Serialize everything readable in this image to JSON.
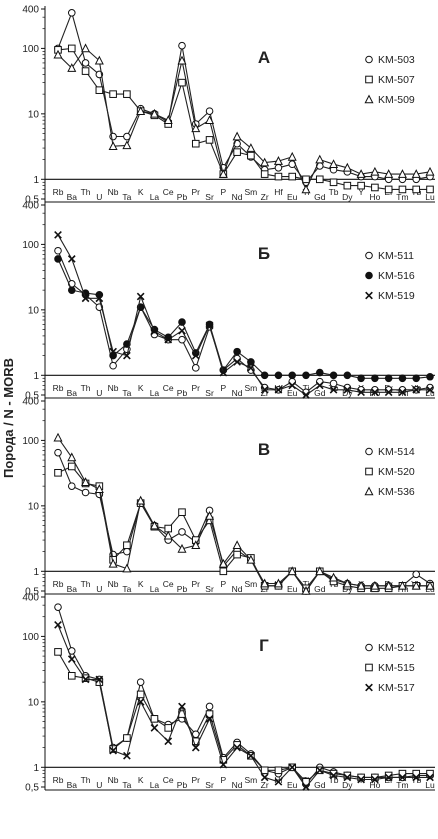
{
  "figure": {
    "ylabel": "Порода / N - MORB"
  },
  "chart_data": [
    {
      "type": "line",
      "title": "А",
      "yscale": "log",
      "ylim": [
        0.5,
        400
      ],
      "ytick_labels": [
        "0,5",
        "1",
        "10",
        "100",
        "400"
      ],
      "reference_line": 1,
      "categories": [
        "Rb",
        "Ba",
        "Th",
        "U",
        "Nb",
        "Ta",
        "K",
        "La",
        "Ce",
        "Pb",
        "Pr",
        "Sr",
        "P",
        "Nd",
        "Sm",
        "Zr",
        "Hf",
        "Eu",
        "Ti",
        "Gd",
        "Tb",
        "Dy",
        "Y",
        "Ho",
        "Er",
        "Tm",
        "Yb",
        "Lu"
      ],
      "series": [
        {
          "name": "KM-503",
          "marker": "circle-open",
          "values": [
            100,
            350,
            60,
            40,
            4.5,
            4.5,
            12,
            10,
            7.5,
            110,
            7,
            11,
            1.5,
            3.5,
            2.2,
            1.4,
            1.5,
            1.7,
            0.9,
            1.6,
            1.4,
            1.3,
            1.1,
            1.1,
            1.0,
            1.0,
            1.0,
            1.1
          ]
        },
        {
          "name": "KM-507",
          "marker": "square-open",
          "values": [
            95,
            100,
            45,
            23,
            20,
            20,
            11,
            9.5,
            7,
            30,
            3.5,
            4,
            1.2,
            2.6,
            2.3,
            1.2,
            1.1,
            1.1,
            1.0,
            1.0,
            0.9,
            0.8,
            0.8,
            0.75,
            0.7,
            0.7,
            0.7,
            0.7
          ]
        },
        {
          "name": "KM-509",
          "marker": "triangle-open",
          "values": [
            80,
            50,
            100,
            65,
            3.2,
            3.3,
            11,
            10,
            8,
            65,
            6,
            8,
            1.2,
            4.5,
            3,
            1.8,
            1.9,
            2.2,
            0.7,
            2,
            1.7,
            1.5,
            1.2,
            1.3,
            1.2,
            1.2,
            1.2,
            1.3
          ]
        }
      ]
    },
    {
      "type": "line",
      "title": "Б",
      "yscale": "log",
      "ylim": [
        0.5,
        400
      ],
      "ytick_labels": [
        "0,5",
        "1",
        "10",
        "100",
        "400"
      ],
      "reference_line": 1,
      "categories": [
        "Rb",
        "Ba",
        "Th",
        "U",
        "Nb",
        "Ta",
        "K",
        "La",
        "Ce",
        "Pb",
        "Pr",
        "Sr",
        "P",
        "Nd",
        "Sm",
        "Zr",
        "Hf",
        "Eu",
        "Ti",
        "Gd",
        "Tb",
        "Dy",
        "Y",
        "Ho",
        "Er",
        "Tm",
        "Yb",
        "Lu"
      ],
      "series": [
        {
          "name": "KM-511",
          "marker": "circle-open",
          "values": [
            80,
            25,
            17,
            11,
            1.4,
            2.5,
            11,
            4.2,
            3.5,
            3.5,
            1.3,
            5.5,
            1.2,
            1.8,
            1.2,
            0.65,
            0.6,
            0.8,
            0.55,
            0.8,
            0.75,
            0.65,
            0.6,
            0.6,
            0.6,
            0.6,
            0.6,
            0.65
          ]
        },
        {
          "name": "KM-516",
          "marker": "circle-filled",
          "values": [
            60,
            20,
            18,
            17,
            2,
            3,
            11,
            5,
            3.8,
            6.5,
            2.2,
            6,
            1.2,
            2.3,
            1.6,
            1.0,
            1.0,
            1.0,
            1.0,
            1.1,
            1.0,
            1.0,
            0.9,
            0.9,
            0.9,
            0.9,
            0.9,
            0.95
          ]
        },
        {
          "name": "KM-519",
          "marker": "x",
          "values": [
            140,
            60,
            15,
            15,
            2.3,
            2,
            16,
            4.7,
            3.5,
            4.8,
            2,
            5.8,
            1.1,
            1.6,
            1.3,
            0.6,
            0.6,
            0.7,
            0.5,
            0.7,
            0.6,
            0.6,
            0.55,
            0.55,
            0.55,
            0.55,
            0.6,
            0.6
          ]
        }
      ]
    },
    {
      "type": "line",
      "title": "В",
      "yscale": "log",
      "ylim": [
        0.5,
        400
      ],
      "ytick_labels": [
        "0,5",
        "1",
        "10",
        "100",
        "400"
      ],
      "reference_line": 1,
      "categories": [
        "Rb",
        "Ba",
        "Th",
        "U",
        "Nb",
        "Ta",
        "K",
        "La",
        "Ce",
        "Pb",
        "Pr",
        "Sr",
        "P",
        "Nd",
        "Sm",
        "Zr",
        "Hf",
        "Eu",
        "Ti",
        "Gd",
        "Tb",
        "Dy",
        "Y",
        "Ho",
        "Er",
        "Tm",
        "Yb",
        "Lu"
      ],
      "series": [
        {
          "name": "KM-514",
          "marker": "circle-open",
          "values": [
            65,
            20,
            16,
            15,
            1.8,
            2,
            11,
            5,
            3,
            4,
            2.8,
            8.5,
            1.2,
            2.1,
            1.5,
            0.6,
            0.6,
            1.0,
            0.5,
            1.0,
            0.75,
            0.65,
            0.6,
            0.6,
            0.6,
            0.6,
            0.9,
            0.65
          ]
        },
        {
          "name": "KM-520",
          "marker": "square-open",
          "values": [
            32,
            40,
            22,
            20,
            1.5,
            2.5,
            11,
            4.8,
            4.5,
            8,
            3,
            6,
            1.0,
            1.8,
            1.6,
            0.6,
            0.6,
            1.0,
            0.55,
            1.0,
            0.7,
            0.6,
            0.55,
            0.55,
            0.55,
            0.6,
            0.6,
            0.6
          ]
        },
        {
          "name": "KM-536",
          "marker": "triangle-open",
          "values": [
            110,
            55,
            23,
            18,
            1.3,
            1.1,
            12,
            5,
            3.5,
            2.2,
            2.5,
            7,
            1.3,
            2.5,
            1.5,
            0.65,
            0.65,
            1.0,
            0.5,
            1.0,
            0.8,
            0.65,
            0.6,
            0.6,
            0.6,
            0.6,
            0.6,
            0.6
          ]
        }
      ]
    },
    {
      "type": "line",
      "title": "Г",
      "yscale": "log",
      "ylim": [
        0.5,
        400
      ],
      "ytick_labels": [
        "0,5",
        "1",
        "10",
        "100",
        "400"
      ],
      "reference_line": 1,
      "categories": [
        "Rb",
        "Ba",
        "Th",
        "U",
        "Nb",
        "Ta",
        "K",
        "La",
        "Ce",
        "Pb",
        "Pr",
        "Sr",
        "P",
        "Nd",
        "Sm",
        "Zr",
        "Hf",
        "Eu",
        "Ti",
        "Gd",
        "Tb",
        "Dy",
        "Y",
        "Ho",
        "Er",
        "Tm",
        "Yb",
        "Lu"
      ],
      "series": [
        {
          "name": "KM-512",
          "marker": "circle-open",
          "values": [
            280,
            60,
            25,
            22,
            2,
            2.8,
            20,
            5.5,
            4.5,
            5.5,
            3.2,
            8.5,
            1.4,
            2.4,
            1.6,
            0.9,
            0.8,
            1.0,
            0.55,
            1.0,
            0.85,
            0.75,
            0.7,
            0.7,
            0.7,
            0.7,
            0.75,
            0.75
          ]
        },
        {
          "name": "KM-515",
          "marker": "square-open",
          "values": [
            58,
            25,
            23,
            20,
            1.9,
            2.8,
            13,
            5.5,
            4,
            6.5,
            2.5,
            6.5,
            1.3,
            2.2,
            1.5,
            0.9,
            0.9,
            1.0,
            0.6,
            0.9,
            0.8,
            0.75,
            0.7,
            0.7,
            0.75,
            0.8,
            0.8,
            0.8
          ]
        },
        {
          "name": "KM-517",
          "marker": "x",
          "values": [
            150,
            45,
            22,
            22,
            1.8,
            1.5,
            10,
            4,
            2.5,
            8.5,
            2,
            5.5,
            1.1,
            2,
            1.5,
            0.7,
            0.6,
            1.0,
            0.5,
            0.9,
            0.75,
            0.7,
            0.65,
            0.65,
            0.7,
            0.7,
            0.7,
            0.7
          ]
        }
      ]
    }
  ]
}
